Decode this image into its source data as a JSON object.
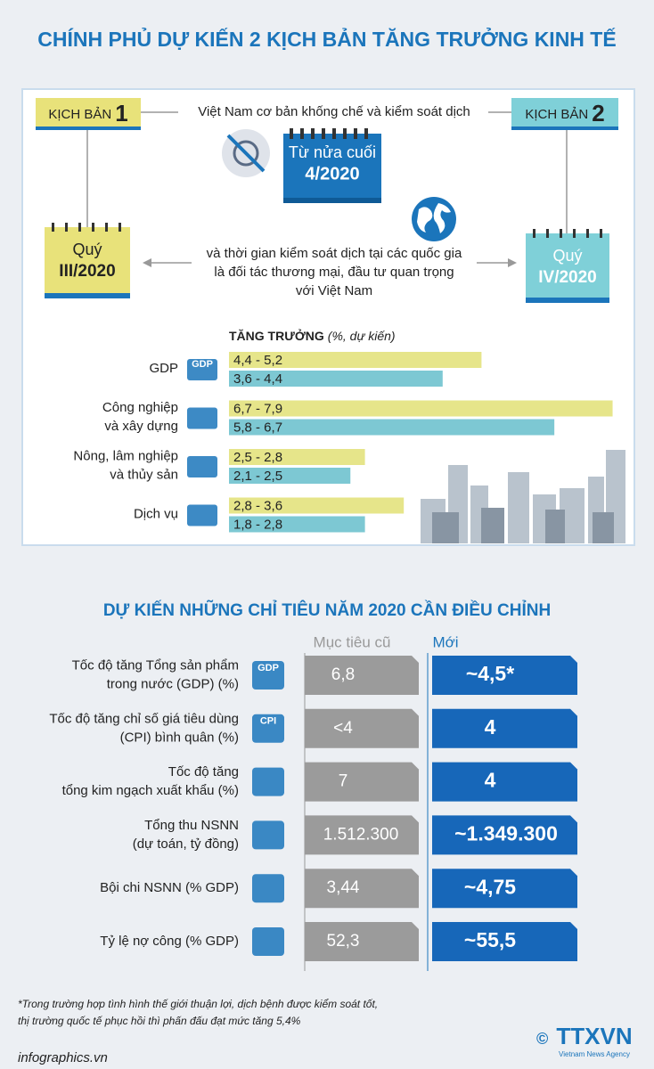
{
  "title": "CHÍNH PHỦ DỰ KIẾN 2 KỊCH BẢN TĂNG TRƯỞNG KINH TẾ",
  "scenarios": [
    {
      "label": "KỊCH BẢN",
      "number": "1",
      "period_label": "Quý",
      "period": "III/2020"
    },
    {
      "label": "KỊCH BẢN",
      "number": "2",
      "period_label": "Quý",
      "period": "IV/2020"
    }
  ],
  "center_top": "Việt Nam cơ bản khống chế và kiểm soát dịch",
  "calendar": {
    "line1": "Từ nửa cuối",
    "line2": "4/2020"
  },
  "center_bottom": [
    "và thời gian kiểm soát dịch tại các quốc gia",
    "là đối tác thương mại, đầu tư quan trọng",
    "với Việt Nam"
  ],
  "growth": {
    "title": "TĂNG TRƯỞNG",
    "unit": "(%, dự kiến)",
    "rows": [
      {
        "label": [
          "GDP"
        ],
        "icon_text": "GDP",
        "ranges": [
          {
            "label": "4,4 - 5,2",
            "low": 4.4,
            "high": 5.2
          },
          {
            "label": "3,6 - 4,4",
            "low": 3.6,
            "high": 4.4
          }
        ]
      },
      {
        "label": [
          "Công nghiệp",
          "và xây dựng"
        ],
        "ranges": [
          {
            "label": "6,7 - 7,9",
            "low": 6.7,
            "high": 7.9
          },
          {
            "label": "5,8 - 6,7",
            "low": 5.8,
            "high": 6.7
          }
        ]
      },
      {
        "label": [
          "Nông, lâm nghiệp",
          "và thủy sản"
        ],
        "ranges": [
          {
            "label": "2,5 - 2,8",
            "low": 2.5,
            "high": 2.8
          },
          {
            "label": "2,1 - 2,5",
            "low": 2.1,
            "high": 2.5
          }
        ]
      },
      {
        "label": [
          "Dịch vụ"
        ],
        "ranges": [
          {
            "label": "2,8 - 3,6",
            "low": 2.8,
            "high": 3.6
          },
          {
            "label": "1,8 - 2,8",
            "low": 1.8,
            "high": 2.8
          }
        ]
      }
    ]
  },
  "targets": {
    "title": "DỰ KIẾN NHỮNG CHỈ TIÊU NĂM 2020 CẦN ĐIỀU CHỈNH",
    "col_old": "Mục tiêu cũ",
    "col_new": "Mới",
    "rows": [
      {
        "label": [
          "Tốc độ tăng Tổng sản phẩm",
          "trong nước (GDP) (%)"
        ],
        "icon_text": "GDP",
        "old": "6,8",
        "new": "~4,5*"
      },
      {
        "label": [
          "Tốc độ tăng chỉ số giá tiêu dùng",
          "(CPI) bình quân (%)"
        ],
        "icon_text": "CPI",
        "old": "<4",
        "new": "4"
      },
      {
        "label": [
          "Tốc độ tăng",
          "tổng kim ngạch xuất khẩu (%)"
        ],
        "old": "7",
        "new": "4"
      },
      {
        "label": [
          "Tổng thu NSNN",
          "(dự toán, tỷ đồng)"
        ],
        "old": "1.512.300",
        "new": "~1.349.300"
      },
      {
        "label": [
          "Bội chi NSNN (% GDP)"
        ],
        "old": "3,44",
        "new": "~4,75"
      },
      {
        "label": [
          "Tỷ lệ nợ công (% GDP)"
        ],
        "old": "52,3",
        "new": "~55,5"
      }
    ]
  },
  "footnote": [
    "*Trong trường hợp tình hình thế giới thuận lợi, dịch bệnh được kiểm soát tốt,",
    "thị trường quốc tế phục hồi thì phấn đấu đạt mức tăng 5,4%"
  ],
  "source": "infographics.vn",
  "copyright": "©",
  "logo": "TTXVN",
  "logo_sub": "Vietnam News Agency"
}
